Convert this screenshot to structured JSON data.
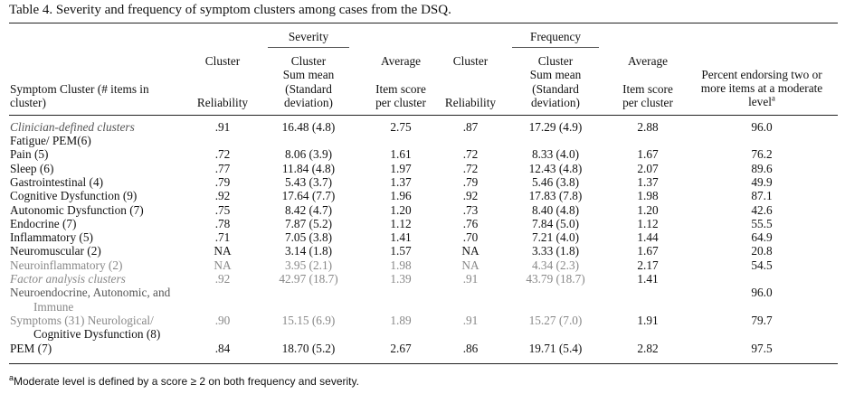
{
  "caption": "Table 4.   Severity and frequency of symptom clusters among cases from the DSQ.",
  "groups": {
    "severity": "Severity",
    "frequency": "Frequency"
  },
  "headers": {
    "cluster_a": "Cluster",
    "reliability_a": "Reliability",
    "sum_a": [
      "Cluster",
      "Sum mean",
      "(Standard",
      "deviation)"
    ],
    "avg_a": [
      "Average",
      "Item score",
      "per cluster"
    ],
    "cluster_b": "Cluster",
    "reliability_b": "Reliability",
    "sum_b": [
      "Cluster",
      "Sum mean",
      "(Standard",
      "deviation)"
    ],
    "avg_b": [
      "Average",
      "Item score",
      "per cluster"
    ],
    "percent": [
      "Percent endorsing two or",
      "more items at a moderate",
      "level"
    ],
    "percent_sup": "a",
    "symptom": [
      "Symptom Cluster (# items in",
      "cluster)"
    ]
  },
  "rows": [
    {
      "label": "Clinician-defined clusters",
      "rel_s": ".91",
      "sum_s": "16.48 (4.8)",
      "avg_s": "2.75",
      "rel_f": ".87",
      "sum_f": "17.29 (4.9)",
      "avg_f": "2.88",
      "pct": "96.0"
    },
    {
      "label": "Fatigue/ PEM(6)",
      "rel_s": "",
      "sum_s": "",
      "avg_s": "",
      "rel_f": "",
      "sum_f": "",
      "avg_f": "",
      "pct": ""
    },
    {
      "label": "Pain (5)",
      "rel_s": ".72",
      "sum_s": "8.06 (3.9)",
      "avg_s": "1.61",
      "rel_f": ".72",
      "sum_f": "8.33 (4.0)",
      "avg_f": "1.67",
      "pct": "76.2"
    },
    {
      "label": "Sleep (6)",
      "rel_s": ".77",
      "sum_s": "11.84 (4.8)",
      "avg_s": "1.97",
      "rel_f": ".72",
      "sum_f": "12.43 (4.8)",
      "avg_f": "2.07",
      "pct": "89.6"
    },
    {
      "label": "Gastrointestinal (4)",
      "rel_s": ".79",
      "sum_s": "5.43 (3.7)",
      "avg_s": "1.37",
      "rel_f": ".79",
      "sum_f": "5.46 (3.8)",
      "avg_f": "1.37",
      "pct": "49.9"
    },
    {
      "label": "Cognitive Dysfunction (9)",
      "rel_s": ".92",
      "sum_s": "17.64 (7.7)",
      "avg_s": "1.96",
      "rel_f": ".92",
      "sum_f": "17.83 (7.8)",
      "avg_f": "1.98",
      "pct": "87.1"
    },
    {
      "label": "Autonomic Dysfunction (7)",
      "rel_s": ".75",
      "sum_s": "8.42 (4.7)",
      "avg_s": "1.20",
      "rel_f": ".73",
      "sum_f": "8.40 (4.8)",
      "avg_f": "1.20",
      "pct": "42.6"
    },
    {
      "label": "Endocrine (7)",
      "rel_s": ".78",
      "sum_s": "7.87 (5.2)",
      "avg_s": "1.12",
      "rel_f": ".76",
      "sum_f": "7.84 (5.0)",
      "avg_f": "1.12",
      "pct": "55.5"
    },
    {
      "label": "Inflammatory (5)",
      "rel_s": ".71",
      "sum_s": "7.05 (3.8)",
      "avg_s": "1.41",
      "rel_f": ".70",
      "sum_f": "7.21 (4.0)",
      "avg_f": "1.44",
      "pct": "64.9"
    },
    {
      "label": "Neuromuscular (2)",
      "rel_s": "NA",
      "sum_s": "3.14 (1.8)",
      "avg_s": "1.57",
      "rel_f": "NA",
      "sum_f": "3.33 (1.8)",
      "avg_f": "1.67",
      "pct": "20.8"
    },
    {
      "label": "Neuroinflammatory (2)",
      "rel_s": "NA",
      "sum_s": "3.95 (2.1)",
      "avg_s": "1.98",
      "rel_f": "NA",
      "sum_f": "4.34 (2.3)",
      "avg_f": "2.17",
      "pct": "54.5"
    },
    {
      "label": "Factor analysis clusters",
      "rel_s": ".92",
      "sum_s": "42.97 (18.7)",
      "avg_s": "1.39",
      "rel_f": ".91",
      "sum_f": "43.79 (18.7)",
      "avg_f": "1.41",
      "pct": ""
    },
    {
      "label": "Neuroendocrine, Autonomic, and",
      "rel_s": "",
      "sum_s": "",
      "avg_s": "",
      "rel_f": "",
      "sum_f": "",
      "avg_f": "",
      "pct": "96.0"
    },
    {
      "label": "Immune",
      "rel_s": "",
      "sum_s": "",
      "avg_s": "",
      "rel_f": "",
      "sum_f": "",
      "avg_f": "",
      "pct": ""
    },
    {
      "label": "Symptoms (31) Neurological/",
      "rel_s": ".90",
      "sum_s": "15.15 (6.9)",
      "avg_s": "1.89",
      "rel_f": ".91",
      "sum_f": "15.27 (7.0)",
      "avg_f": "1.91",
      "pct": "79.7"
    },
    {
      "label": "Cognitive Dysfunction (8)",
      "rel_s": "",
      "sum_s": "",
      "avg_s": "",
      "rel_f": "",
      "sum_f": "",
      "avg_f": "",
      "pct": ""
    },
    {
      "label": "PEM (7)",
      "rel_s": ".84",
      "sum_s": "18.70 (5.2)",
      "avg_s": "2.67",
      "rel_f": ".86",
      "sum_f": "19.71 (5.4)",
      "avg_f": "2.82",
      "pct": "97.5"
    }
  ],
  "footnote_sup": "a",
  "footnote": "Moderate level is defined by a score ≥ 2 on both frequency and severity."
}
